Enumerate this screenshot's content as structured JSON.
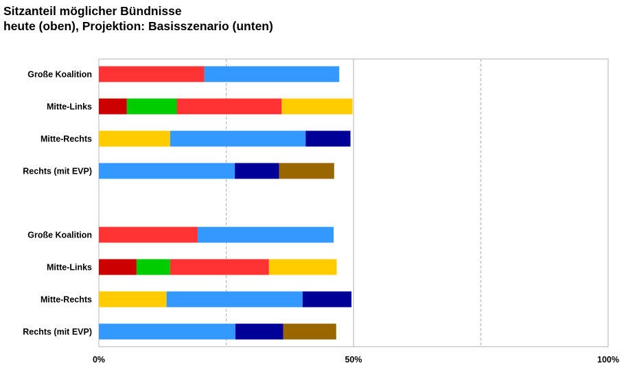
{
  "chart_data": {
    "type": "bar",
    "orientation": "horizontal",
    "stacked": true,
    "title": "Sitzanteil möglicher Bündnisse",
    "subtitle": "heute (oben), Projektion: Basisszenario (unten)",
    "xlim": [
      0,
      100
    ],
    "xticks": [
      {
        "value": 0,
        "label": "0%"
      },
      {
        "value": 50,
        "label": "50%"
      },
      {
        "value": 100,
        "label": "100%"
      }
    ],
    "grid": {
      "solid": [
        50,
        100
      ],
      "dashed": [
        25,
        75
      ]
    },
    "legend": "none",
    "groups": [
      {
        "rows": [
          {
            "label": "Große Koalition",
            "segments": [
              {
                "value": 20.7,
                "color": "#ff3333"
              },
              {
                "value": 26.5,
                "color": "#3399ff"
              }
            ]
          },
          {
            "label": "Mitte-Links",
            "segments": [
              {
                "value": 5.5,
                "color": "#cc0000"
              },
              {
                "value": 9.8,
                "color": "#00cc00"
              },
              {
                "value": 20.6,
                "color": "#ff3333"
              },
              {
                "value": 13.9,
                "color": "#ffcc00"
              }
            ]
          },
          {
            "label": "Mitte-Rechts",
            "segments": [
              {
                "value": 14.0,
                "color": "#ffcc00"
              },
              {
                "value": 26.6,
                "color": "#3399ff"
              },
              {
                "value": 8.8,
                "color": "#000099"
              }
            ]
          },
          {
            "label": "Rechts (mit EVP)",
            "segments": [
              {
                "value": 26.7,
                "color": "#3399ff"
              },
              {
                "value": 8.7,
                "color": "#000099"
              },
              {
                "value": 10.8,
                "color": "#996600"
              }
            ]
          }
        ]
      },
      {
        "rows": [
          {
            "label": "Große Koalition",
            "segments": [
              {
                "value": 19.4,
                "color": "#ff3333"
              },
              {
                "value": 26.7,
                "color": "#3399ff"
              }
            ]
          },
          {
            "label": "Mitte-Links",
            "segments": [
              {
                "value": 7.4,
                "color": "#cc0000"
              },
              {
                "value": 6.6,
                "color": "#00cc00"
              },
              {
                "value": 19.4,
                "color": "#ff3333"
              },
              {
                "value": 13.3,
                "color": "#ffcc00"
              }
            ]
          },
          {
            "label": "Mitte-Rechts",
            "segments": [
              {
                "value": 13.3,
                "color": "#ffcc00"
              },
              {
                "value": 26.7,
                "color": "#3399ff"
              },
              {
                "value": 9.6,
                "color": "#000099"
              }
            ]
          },
          {
            "label": "Rechts (mit EVP)",
            "segments": [
              {
                "value": 26.8,
                "color": "#3399ff"
              },
              {
                "value": 9.4,
                "color": "#000099"
              },
              {
                "value": 10.4,
                "color": "#996600"
              }
            ]
          }
        ]
      }
    ]
  }
}
